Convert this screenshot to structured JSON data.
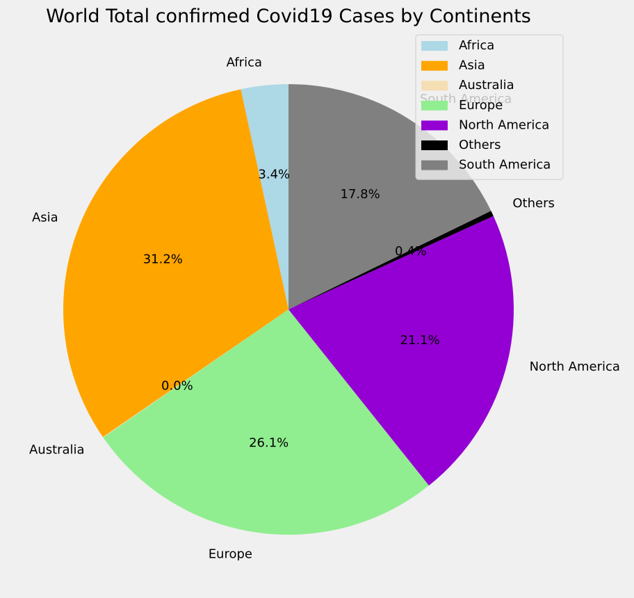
{
  "chart_data": {
    "type": "pie",
    "title": "World Total confirmed Covid19 Cases by Continents",
    "start_angle_deg": 90,
    "direction": "counterclockwise",
    "legend_position": "top-right",
    "slices": [
      {
        "label": "Africa",
        "value": 3.4,
        "pct_text": "3.4%",
        "color": "#add8e6"
      },
      {
        "label": "Asia",
        "value": 31.2,
        "pct_text": "31.2%",
        "color": "#ffa500"
      },
      {
        "label": "Australia",
        "value": 0.04,
        "pct_text": "0.0%",
        "color": "#f5deb3"
      },
      {
        "label": "Europe",
        "value": 26.1,
        "pct_text": "26.1%",
        "color": "#90ee90"
      },
      {
        "label": "North America",
        "value": 21.1,
        "pct_text": "21.1%",
        "color": "#9400d3"
      },
      {
        "label": "Others",
        "value": 0.4,
        "pct_text": "0.4%",
        "color": "#000000"
      },
      {
        "label": "South America",
        "value": 17.8,
        "pct_text": "17.8%",
        "color": "#808080"
      }
    ]
  }
}
